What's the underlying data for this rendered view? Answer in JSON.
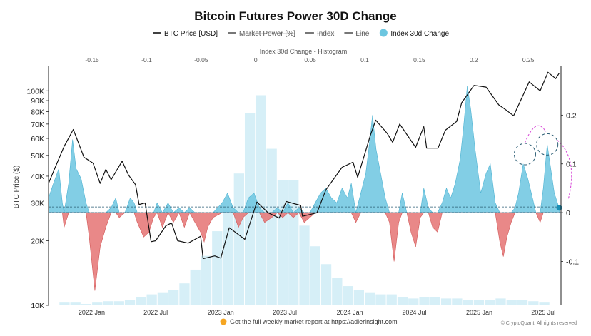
{
  "chart_data": {
    "type": "area",
    "title": "Bitcoin Futures Power 30D Change",
    "legend": {
      "placement": "top-center",
      "items": [
        {
          "label": "BTC Price [USD]",
          "kind": "line",
          "color": "#111111",
          "struck": false
        },
        {
          "label": "Market Power [%]",
          "kind": "line",
          "color": "#555555",
          "struck": true
        },
        {
          "label": "Index",
          "kind": "line",
          "color": "#555555",
          "struck": true
        },
        {
          "label": "Line",
          "kind": "line",
          "color": "#555555",
          "struck": true
        },
        {
          "label": "Index 30d Change",
          "kind": "dot",
          "color": "#6cc6e0",
          "struck": false
        }
      ]
    },
    "top_axis": {
      "label": "Index 30d Change - Histogram",
      "range": [
        -0.19,
        0.28
      ],
      "ticks": [
        -0.15,
        -0.1,
        -0.05,
        0,
        0.05,
        0.1,
        0.15,
        0.2,
        0.25
      ]
    },
    "left_axis": {
      "label": "BTC Price ($)",
      "scale": "log",
      "range": [
        10000,
        130000
      ],
      "ticks": [
        100000,
        90000,
        80000,
        70000,
        60000,
        50000,
        40000,
        30000,
        20000,
        10000
      ],
      "tick_labels": [
        "100K",
        "90K",
        "80K",
        "70K",
        "60K",
        "50K",
        "40K",
        "30K",
        "20K",
        "10K"
      ]
    },
    "right_axis": {
      "range": [
        -0.19,
        0.3
      ],
      "ticks": [
        0.2,
        0.1,
        0,
        -0.1
      ],
      "tick_labels": [
        "0.2",
        "0.1",
        "0",
        "-0.1"
      ]
    },
    "x_axis": {
      "type": "date",
      "range": [
        "2021-09-01",
        "2025-08-20"
      ],
      "ticks": [
        "2022-01-01",
        "2022-07-01",
        "2023-01-01",
        "2023-07-01",
        "2024-01-01",
        "2024-07-01",
        "2025-01-01",
        "2025-07-01"
      ],
      "tick_labels": [
        "2022 Jan",
        "2022 Jul",
        "2023 Jan",
        "2023 Jul",
        "2024 Jan",
        "2024 Jul",
        "2025 Jan",
        "2025 Jul"
      ]
    },
    "colors": {
      "btc_price": "#111111",
      "index_positive": "#6cc6e0",
      "index_negative": "#e57373",
      "histogram": "#d6eff7",
      "dashed_line": "#2b5d74",
      "annotation": "#d94fd9"
    },
    "series": {
      "btc_price": [
        [
          "2021-09-01",
          37000
        ],
        [
          "2021-09-20",
          44000
        ],
        [
          "2021-10-15",
          55000
        ],
        [
          "2021-11-10",
          66000
        ],
        [
          "2021-11-25",
          57000
        ],
        [
          "2021-12-10",
          49000
        ],
        [
          "2022-01-05",
          46000
        ],
        [
          "2022-01-25",
          37000
        ],
        [
          "2022-02-10",
          43000
        ],
        [
          "2022-02-25",
          38500
        ],
        [
          "2022-03-28",
          47000
        ],
        [
          "2022-04-15",
          40500
        ],
        [
          "2022-05-05",
          36500
        ],
        [
          "2022-05-15",
          29500
        ],
        [
          "2022-06-01",
          30000
        ],
        [
          "2022-06-18",
          19800
        ],
        [
          "2022-07-01",
          20000
        ],
        [
          "2022-07-30",
          23500
        ],
        [
          "2022-08-15",
          24200
        ],
        [
          "2022-09-01",
          20000
        ],
        [
          "2022-10-01",
          19500
        ],
        [
          "2022-11-05",
          21000
        ],
        [
          "2022-11-12",
          16500
        ],
        [
          "2022-12-15",
          17000
        ],
        [
          "2023-01-01",
          16600
        ],
        [
          "2023-01-25",
          23000
        ],
        [
          "2023-03-10",
          20300
        ],
        [
          "2023-04-13",
          30300
        ],
        [
          "2023-05-15",
          27000
        ],
        [
          "2023-06-15",
          25500
        ],
        [
          "2023-07-05",
          30500
        ],
        [
          "2023-08-15",
          29200
        ],
        [
          "2023-08-20",
          26000
        ],
        [
          "2023-09-30",
          27000
        ],
        [
          "2023-10-25",
          34500
        ],
        [
          "2023-12-10",
          44000
        ],
        [
          "2024-01-10",
          46500
        ],
        [
          "2024-01-23",
          39500
        ],
        [
          "2024-02-28",
          62000
        ],
        [
          "2024-03-14",
          73000
        ],
        [
          "2024-04-15",
          63500
        ],
        [
          "2024-05-01",
          57500
        ],
        [
          "2024-05-21",
          70000
        ],
        [
          "2024-07-05",
          54500
        ],
        [
          "2024-07-28",
          68000
        ],
        [
          "2024-08-05",
          54000
        ],
        [
          "2024-09-06",
          54000
        ],
        [
          "2024-09-27",
          65500
        ],
        [
          "2024-10-29",
          72000
        ],
        [
          "2024-11-12",
          88000
        ],
        [
          "2024-12-17",
          106000
        ],
        [
          "2025-01-20",
          104000
        ],
        [
          "2025-02-25",
          86000
        ],
        [
          "2025-03-15",
          82000
        ],
        [
          "2025-04-08",
          76500
        ],
        [
          "2025-05-22",
          110000
        ],
        [
          "2025-06-22",
          100000
        ],
        [
          "2025-07-14",
          122000
        ],
        [
          "2025-08-05",
          114000
        ],
        [
          "2025-08-15",
          121000
        ]
      ],
      "index_30d_change": [
        [
          "2021-09-01",
          0.03
        ],
        [
          "2021-09-15",
          0.06
        ],
        [
          "2021-09-30",
          0.09
        ],
        [
          "2021-10-10",
          0.02
        ],
        [
          "2021-10-15",
          -0.03
        ],
        [
          "2021-10-28",
          0.06
        ],
        [
          "2021-11-08",
          0.15
        ],
        [
          "2021-11-18",
          0.09
        ],
        [
          "2021-12-02",
          0.07
        ],
        [
          "2021-12-16",
          0.02
        ],
        [
          "2021-12-25",
          -0.05
        ],
        [
          "2022-01-10",
          -0.16
        ],
        [
          "2022-01-25",
          -0.07
        ],
        [
          "2022-02-10",
          -0.03
        ],
        [
          "2022-02-25",
          0.01
        ],
        [
          "2022-03-10",
          0.03
        ],
        [
          "2022-03-20",
          -0.01
        ],
        [
          "2022-04-05",
          0.0
        ],
        [
          "2022-04-20",
          0.03
        ],
        [
          "2022-05-01",
          0.02
        ],
        [
          "2022-05-10",
          -0.02
        ],
        [
          "2022-05-28",
          -0.05
        ],
        [
          "2022-06-12",
          -0.04
        ],
        [
          "2022-06-25",
          -0.01
        ],
        [
          "2022-07-05",
          0.02
        ],
        [
          "2022-07-20",
          -0.03
        ],
        [
          "2022-08-05",
          0.02
        ],
        [
          "2022-08-20",
          -0.02
        ],
        [
          "2022-09-05",
          0.01
        ],
        [
          "2022-09-20",
          -0.03
        ],
        [
          "2022-10-05",
          0.01
        ],
        [
          "2022-10-20",
          -0.02
        ],
        [
          "2022-11-05",
          -0.04
        ],
        [
          "2022-11-15",
          -0.06
        ],
        [
          "2022-11-25",
          -0.03
        ],
        [
          "2022-12-10",
          -0.01
        ],
        [
          "2023-01-05",
          0.02
        ],
        [
          "2023-01-20",
          0.04
        ],
        [
          "2023-02-05",
          0.01
        ],
        [
          "2023-02-20",
          -0.03
        ],
        [
          "2023-03-05",
          -0.01
        ],
        [
          "2023-03-20",
          0.03
        ],
        [
          "2023-04-05",
          0.04
        ],
        [
          "2023-04-20",
          0.01
        ],
        [
          "2023-05-05",
          -0.02
        ],
        [
          "2023-05-25",
          -0.01
        ],
        [
          "2023-06-10",
          0.01
        ],
        [
          "2023-06-25",
          -0.01
        ],
        [
          "2023-07-10",
          0.02
        ],
        [
          "2023-07-25",
          -0.01
        ],
        [
          "2023-08-10",
          0.01
        ],
        [
          "2023-08-25",
          -0.02
        ],
        [
          "2023-09-10",
          -0.01
        ],
        [
          "2023-09-25",
          0.02
        ],
        [
          "2023-10-10",
          0.04
        ],
        [
          "2023-10-25",
          0.05
        ],
        [
          "2023-11-10",
          0.03
        ],
        [
          "2023-11-25",
          0.02
        ],
        [
          "2023-12-10",
          0.05
        ],
        [
          "2023-12-25",
          0.03
        ],
        [
          "2024-01-05",
          0.06
        ],
        [
          "2024-01-18",
          -0.02
        ],
        [
          "2024-02-01",
          0.04
        ],
        [
          "2024-02-15",
          0.08
        ],
        [
          "2024-02-25",
          0.14
        ],
        [
          "2024-03-05",
          0.2
        ],
        [
          "2024-03-15",
          0.13
        ],
        [
          "2024-03-28",
          0.08
        ],
        [
          "2024-04-10",
          0.03
        ],
        [
          "2024-04-22",
          -0.02
        ],
        [
          "2024-05-05",
          -0.1
        ],
        [
          "2024-05-18",
          -0.02
        ],
        [
          "2024-05-28",
          0.04
        ],
        [
          "2024-06-10",
          0.0
        ],
        [
          "2024-06-22",
          -0.04
        ],
        [
          "2024-07-05",
          -0.07
        ],
        [
          "2024-07-18",
          -0.01
        ],
        [
          "2024-07-28",
          0.05
        ],
        [
          "2024-08-10",
          0.01
        ],
        [
          "2024-08-22",
          -0.03
        ],
        [
          "2024-09-05",
          -0.04
        ],
        [
          "2024-09-18",
          0.02
        ],
        [
          "2024-09-30",
          0.05
        ],
        [
          "2024-10-12",
          0.03
        ],
        [
          "2024-10-25",
          0.06
        ],
        [
          "2024-11-08",
          0.11
        ],
        [
          "2024-11-18",
          0.18
        ],
        [
          "2024-11-28",
          0.26
        ],
        [
          "2024-12-08",
          0.21
        ],
        [
          "2024-12-20",
          0.13
        ],
        [
          "2025-01-05",
          0.04
        ],
        [
          "2025-01-20",
          0.08
        ],
        [
          "2025-02-01",
          0.1
        ],
        [
          "2025-02-15",
          0.02
        ],
        [
          "2025-02-28",
          -0.06
        ],
        [
          "2025-03-10",
          -0.09
        ],
        [
          "2025-03-20",
          -0.05
        ],
        [
          "2025-04-01",
          -0.02
        ],
        [
          "2025-04-12",
          0.01
        ],
        [
          "2025-04-22",
          0.04
        ],
        [
          "2025-05-05",
          0.1
        ],
        [
          "2025-05-18",
          0.07
        ],
        [
          "2025-05-28",
          0.04
        ],
        [
          "2025-06-10",
          0.0
        ],
        [
          "2025-06-22",
          -0.02
        ],
        [
          "2025-07-01",
          0.05
        ],
        [
          "2025-07-12",
          0.14
        ],
        [
          "2025-07-22",
          0.09
        ],
        [
          "2025-08-01",
          0.04
        ],
        [
          "2025-08-10",
          0.02
        ],
        [
          "2025-08-15",
          0.01
        ]
      ],
      "histogram": [
        {
          "value": -0.175,
          "count": 2
        },
        {
          "value": -0.165,
          "count": 2
        },
        {
          "value": -0.155,
          "count": 1
        },
        {
          "value": -0.145,
          "count": 2
        },
        {
          "value": -0.135,
          "count": 3
        },
        {
          "value": -0.125,
          "count": 3
        },
        {
          "value": -0.115,
          "count": 4
        },
        {
          "value": -0.105,
          "count": 6
        },
        {
          "value": -0.095,
          "count": 8
        },
        {
          "value": -0.085,
          "count": 9
        },
        {
          "value": -0.075,
          "count": 11
        },
        {
          "value": -0.065,
          "count": 16
        },
        {
          "value": -0.055,
          "count": 26
        },
        {
          "value": -0.045,
          "count": 36
        },
        {
          "value": -0.035,
          "count": 54
        },
        {
          "value": -0.025,
          "count": 69
        },
        {
          "value": -0.015,
          "count": 96
        },
        {
          "value": -0.005,
          "count": 140
        },
        {
          "value": 0.005,
          "count": 153
        },
        {
          "value": 0.015,
          "count": 114
        },
        {
          "value": 0.025,
          "count": 91
        },
        {
          "value": 0.035,
          "count": 91
        },
        {
          "value": 0.045,
          "count": 58
        },
        {
          "value": 0.055,
          "count": 43
        },
        {
          "value": 0.065,
          "count": 30
        },
        {
          "value": 0.075,
          "count": 20
        },
        {
          "value": 0.085,
          "count": 14
        },
        {
          "value": 0.095,
          "count": 11
        },
        {
          "value": 0.105,
          "count": 9
        },
        {
          "value": 0.115,
          "count": 8
        },
        {
          "value": 0.125,
          "count": 8
        },
        {
          "value": 0.135,
          "count": 6
        },
        {
          "value": 0.145,
          "count": 5
        },
        {
          "value": 0.155,
          "count": 6
        },
        {
          "value": 0.165,
          "count": 6
        },
        {
          "value": 0.175,
          "count": 5
        },
        {
          "value": 0.185,
          "count": 5
        },
        {
          "value": 0.195,
          "count": 4
        },
        {
          "value": 0.205,
          "count": 4
        },
        {
          "value": 0.215,
          "count": 4
        },
        {
          "value": 0.225,
          "count": 5
        },
        {
          "value": 0.235,
          "count": 4
        },
        {
          "value": 0.245,
          "count": 4
        },
        {
          "value": 0.255,
          "count": 3
        },
        {
          "value": 0.265,
          "count": 2
        }
      ],
      "histogram_max": 160,
      "reference_line_value": 0.0,
      "last_point": {
        "date": "2025-08-15",
        "value": 0.01
      }
    },
    "annotations": {
      "circles": [
        {
          "date": "2025-05-10",
          "value": 0.12
        },
        {
          "date": "2025-07-12",
          "value": 0.14
        }
      ]
    }
  },
  "footer": {
    "report_text": "Get the full weekly market report at ",
    "report_link": "https://adlerinsight.com",
    "copyright": "© CryptoQuant. All rights reserved"
  }
}
